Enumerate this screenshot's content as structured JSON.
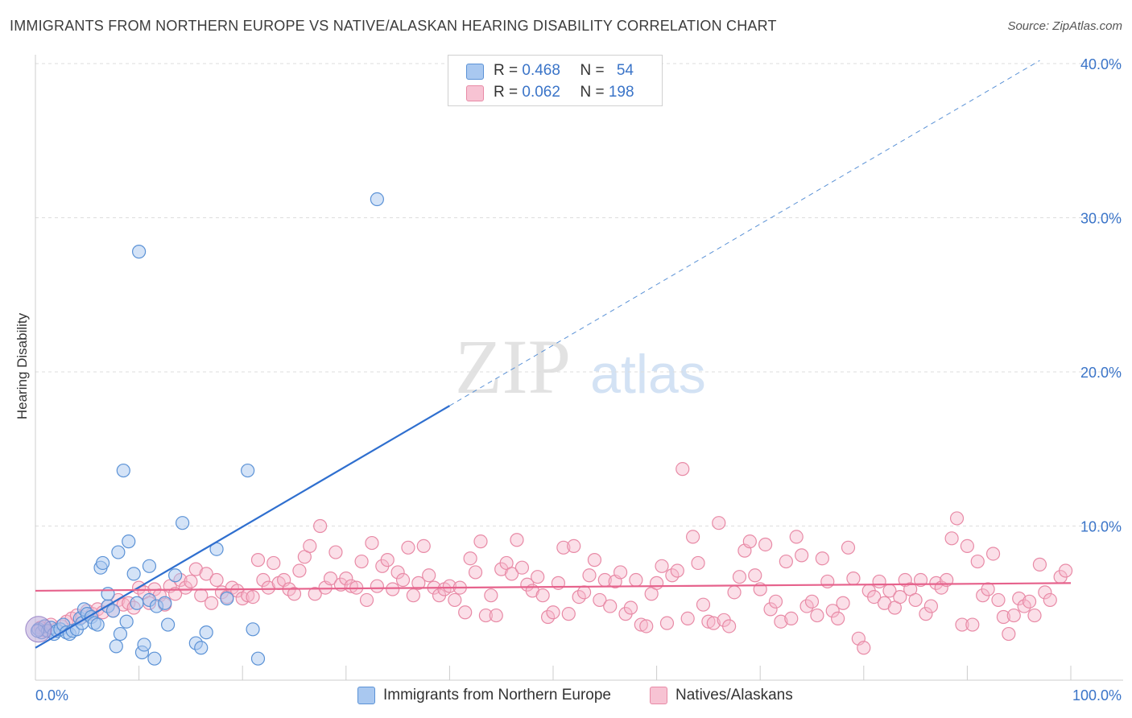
{
  "title": "IMMIGRANTS FROM NORTHERN EUROPE VS NATIVE/ALASKAN HEARING DISABILITY CORRELATION CHART",
  "source": "Source: ZipAtlas.com",
  "watermark": {
    "zip": "ZIP",
    "atlas": "atlas"
  },
  "legend": {
    "series1": {
      "r_label": "R = ",
      "r_value": "0.468",
      "n_label": "N = ",
      "n_value": "54"
    },
    "series2": {
      "r_label": "R = ",
      "r_value": "0.062",
      "n_label": "N = ",
      "n_value": "198"
    }
  },
  "colors": {
    "blue_fill": "#a9c8f0",
    "blue_stroke": "#5b92d6",
    "blue_line": "#2f6fcf",
    "pink_fill": "#f7b8cb",
    "pink_stroke": "#e88aa6",
    "pink_line": "#e6628c",
    "tick_label": "#3a74c8"
  },
  "chart_data": {
    "type": "scatter",
    "title": "IMMIGRANTS FROM NORTHERN EUROPE VS NATIVE/ALASKAN HEARING DISABILITY CORRELATION CHART",
    "xlabel": "",
    "ylabel": "Hearing Disability",
    "xlim": [
      0,
      100
    ],
    "ylim": [
      0,
      42
    ],
    "x_tick_labels": [
      {
        "value": 0,
        "label": "0.0%"
      },
      {
        "value": 100,
        "label": "100.0%"
      }
    ],
    "y_tick_labels": [
      {
        "value": 10,
        "label": "10.0%"
      },
      {
        "value": 20,
        "label": "20.0%"
      },
      {
        "value": 30,
        "label": "30.0%"
      },
      {
        "value": 40,
        "label": "40.0%"
      }
    ],
    "grid": true,
    "legend_position": "top-center",
    "series": [
      {
        "name": "Immigrants from Northern Europe",
        "color": "#5b92d6",
        "r": 0.468,
        "n": 54,
        "trend": {
          "x": [
            0,
            40
          ],
          "y": [
            2.1,
            17.8
          ],
          "extended_to": [
            97,
            40.2
          ]
        },
        "points": [
          [
            0.3,
            3.3
          ],
          [
            0.6,
            3.1
          ],
          [
            0.9,
            3.5
          ],
          [
            1.2,
            3.2
          ],
          [
            1.5,
            3.4
          ],
          [
            1.8,
            3.0
          ],
          [
            2.1,
            3.2
          ],
          [
            2.4,
            3.3
          ],
          [
            2.7,
            3.6
          ],
          [
            3.0,
            3.1
          ],
          [
            3.3,
            3.0
          ],
          [
            3.6,
            3.2
          ],
          [
            4.0,
            3.3
          ],
          [
            4.3,
            4.0
          ],
          [
            4.5,
            3.7
          ],
          [
            4.7,
            4.6
          ],
          [
            5.0,
            4.3
          ],
          [
            5.4,
            4.1
          ],
          [
            5.7,
            3.7
          ],
          [
            6.0,
            3.6
          ],
          [
            6.3,
            7.3
          ],
          [
            6.5,
            7.6
          ],
          [
            7.0,
            4.8
          ],
          [
            7.0,
            5.6
          ],
          [
            7.5,
            4.5
          ],
          [
            7.8,
            2.2
          ],
          [
            8.0,
            8.3
          ],
          [
            8.2,
            3.0
          ],
          [
            8.5,
            13.6
          ],
          [
            8.8,
            3.8
          ],
          [
            9.0,
            9.0
          ],
          [
            9.5,
            6.9
          ],
          [
            9.8,
            5.0
          ],
          [
            10.0,
            27.8
          ],
          [
            10.3,
            1.8
          ],
          [
            10.5,
            2.3
          ],
          [
            11.0,
            5.2
          ],
          [
            11.0,
            7.4
          ],
          [
            11.5,
            1.4
          ],
          [
            11.7,
            4.8
          ],
          [
            12.5,
            5.0
          ],
          [
            12.8,
            3.6
          ],
          [
            13.5,
            6.8
          ],
          [
            14.2,
            10.2
          ],
          [
            15.5,
            2.4
          ],
          [
            16.0,
            2.1
          ],
          [
            16.5,
            3.1
          ],
          [
            17.5,
            8.5
          ],
          [
            18.5,
            5.3
          ],
          [
            20.5,
            13.6
          ],
          [
            21.0,
            3.3
          ],
          [
            21.5,
            1.4
          ],
          [
            33.0,
            31.2
          ],
          [
            0.2,
            3.2
          ]
        ]
      },
      {
        "name": "Natives/Alaskans",
        "color": "#e88aa6",
        "r": 0.062,
        "n": 198,
        "trend": {
          "x": [
            0,
            100
          ],
          "y": [
            5.8,
            6.3
          ]
        },
        "points": [
          [
            0.5,
            3.4
          ],
          [
            1.0,
            3.2
          ],
          [
            1.5,
            3.6
          ],
          [
            2.0,
            3.3
          ],
          [
            2.5,
            3.5
          ],
          [
            3.0,
            3.8
          ],
          [
            3.5,
            4.0
          ],
          [
            4.0,
            4.2
          ],
          [
            4.5,
            4.1
          ],
          [
            5.0,
            4.5
          ],
          [
            5.5,
            4.3
          ],
          [
            6.0,
            4.6
          ],
          [
            6.5,
            4.4
          ],
          [
            7.0,
            4.8
          ],
          [
            7.5,
            4.5
          ],
          [
            8.0,
            5.2
          ],
          [
            8.5,
            4.9
          ],
          [
            9.0,
            5.0
          ],
          [
            9.5,
            4.7
          ],
          [
            10.0,
            6.0
          ],
          [
            10.5,
            5.7
          ],
          [
            11.0,
            5.0
          ],
          [
            11.5,
            5.9
          ],
          [
            12.0,
            5.5
          ],
          [
            12.5,
            4.9
          ],
          [
            13.0,
            6.1
          ],
          [
            13.5,
            5.6
          ],
          [
            14.0,
            6.5
          ],
          [
            14.5,
            6.0
          ],
          [
            15.0,
            6.4
          ],
          [
            15.5,
            7.2
          ],
          [
            16.0,
            5.5
          ],
          [
            16.5,
            6.9
          ],
          [
            17.0,
            5.0
          ],
          [
            17.5,
            6.5
          ],
          [
            18.0,
            5.7
          ],
          [
            18.5,
            5.4
          ],
          [
            19.0,
            6.0
          ],
          [
            19.5,
            5.8
          ],
          [
            20.0,
            5.3
          ],
          [
            20.5,
            5.5
          ],
          [
            21.0,
            5.4
          ],
          [
            21.5,
            7.8
          ],
          [
            22.0,
            6.5
          ],
          [
            22.5,
            6.0
          ],
          [
            23.0,
            7.6
          ],
          [
            23.5,
            6.3
          ],
          [
            24.0,
            6.5
          ],
          [
            24.5,
            5.9
          ],
          [
            25.0,
            5.6
          ],
          [
            25.5,
            7.1
          ],
          [
            26.0,
            8.0
          ],
          [
            26.5,
            8.7
          ],
          [
            27.0,
            5.6
          ],
          [
            27.5,
            10.0
          ],
          [
            28.0,
            6.0
          ],
          [
            28.5,
            6.6
          ],
          [
            29.0,
            8.3
          ],
          [
            29.5,
            6.2
          ],
          [
            30.0,
            6.6
          ],
          [
            30.5,
            6.1
          ],
          [
            31.0,
            6.0
          ],
          [
            31.5,
            7.7
          ],
          [
            32.0,
            5.2
          ],
          [
            32.5,
            8.9
          ],
          [
            33.0,
            6.1
          ],
          [
            33.5,
            7.4
          ],
          [
            34.0,
            7.8
          ],
          [
            34.5,
            5.9
          ],
          [
            35.0,
            7.0
          ],
          [
            35.5,
            6.5
          ],
          [
            36.0,
            8.6
          ],
          [
            36.5,
            5.5
          ],
          [
            37.0,
            6.3
          ],
          [
            37.5,
            8.7
          ],
          [
            38.0,
            6.8
          ],
          [
            38.5,
            6.0
          ],
          [
            39.0,
            5.5
          ],
          [
            39.5,
            5.9
          ],
          [
            40.0,
            6.1
          ],
          [
            40.5,
            5.2
          ],
          [
            41.0,
            6.0
          ],
          [
            41.5,
            4.4
          ],
          [
            42.0,
            7.9
          ],
          [
            42.5,
            7.0
          ],
          [
            43.0,
            9.0
          ],
          [
            43.5,
            4.2
          ],
          [
            44.0,
            5.5
          ],
          [
            44.5,
            4.2
          ],
          [
            45.0,
            7.2
          ],
          [
            45.5,
            7.6
          ],
          [
            46.0,
            6.9
          ],
          [
            46.5,
            9.1
          ],
          [
            47.0,
            7.3
          ],
          [
            47.5,
            6.2
          ],
          [
            48.0,
            5.8
          ],
          [
            48.5,
            6.7
          ],
          [
            49.0,
            5.5
          ],
          [
            49.5,
            4.1
          ],
          [
            50.0,
            4.4
          ],
          [
            50.5,
            6.3
          ],
          [
            51.0,
            8.6
          ],
          [
            51.5,
            4.3
          ],
          [
            52.0,
            8.7
          ],
          [
            52.5,
            5.4
          ],
          [
            53.0,
            5.7
          ],
          [
            53.5,
            6.8
          ],
          [
            54.0,
            7.8
          ],
          [
            54.5,
            5.2
          ],
          [
            55.0,
            6.5
          ],
          [
            55.5,
            4.8
          ],
          [
            56.0,
            6.4
          ],
          [
            56.5,
            7.0
          ],
          [
            57.0,
            4.3
          ],
          [
            57.5,
            4.7
          ],
          [
            58.0,
            6.5
          ],
          [
            58.5,
            3.6
          ],
          [
            59.0,
            3.5
          ],
          [
            59.5,
            5.6
          ],
          [
            60.0,
            6.3
          ],
          [
            60.5,
            7.4
          ],
          [
            61.0,
            3.7
          ],
          [
            61.5,
            6.8
          ],
          [
            62.0,
            7.1
          ],
          [
            62.5,
            13.7
          ],
          [
            63.0,
            4.0
          ],
          [
            63.5,
            9.3
          ],
          [
            64.0,
            7.6
          ],
          [
            64.5,
            4.9
          ],
          [
            65.0,
            3.8
          ],
          [
            65.5,
            3.7
          ],
          [
            66.0,
            10.2
          ],
          [
            66.5,
            3.9
          ],
          [
            67.0,
            3.5
          ],
          [
            67.5,
            5.7
          ],
          [
            68.0,
            6.7
          ],
          [
            68.5,
            8.4
          ],
          [
            69.0,
            9.0
          ],
          [
            69.5,
            6.8
          ],
          [
            70.0,
            5.9
          ],
          [
            70.5,
            8.8
          ],
          [
            71.0,
            4.6
          ],
          [
            71.5,
            5.1
          ],
          [
            72.0,
            3.8
          ],
          [
            72.5,
            7.7
          ],
          [
            73.0,
            4.0
          ],
          [
            73.5,
            9.3
          ],
          [
            74.0,
            8.1
          ],
          [
            74.5,
            4.8
          ],
          [
            75.0,
            5.1
          ],
          [
            75.5,
            4.2
          ],
          [
            76.0,
            7.9
          ],
          [
            76.5,
            6.4
          ],
          [
            77.0,
            4.5
          ],
          [
            77.5,
            4.0
          ],
          [
            78.0,
            5.0
          ],
          [
            78.5,
            8.6
          ],
          [
            79.0,
            6.6
          ],
          [
            79.5,
            2.7
          ],
          [
            80.0,
            2.1
          ],
          [
            80.5,
            5.8
          ],
          [
            81.0,
            5.4
          ],
          [
            81.5,
            6.4
          ],
          [
            82.0,
            5.0
          ],
          [
            82.5,
            5.8
          ],
          [
            83.0,
            4.7
          ],
          [
            83.5,
            5.4
          ],
          [
            84.0,
            6.5
          ],
          [
            84.5,
            5.9
          ],
          [
            85.0,
            5.2
          ],
          [
            85.5,
            6.5
          ],
          [
            86.0,
            4.3
          ],
          [
            86.5,
            4.8
          ],
          [
            87.0,
            6.3
          ],
          [
            87.5,
            6.0
          ],
          [
            88.0,
            6.5
          ],
          [
            88.5,
            9.2
          ],
          [
            89.0,
            10.5
          ],
          [
            89.5,
            3.6
          ],
          [
            90.0,
            8.7
          ],
          [
            90.5,
            3.6
          ],
          [
            91.0,
            7.7
          ],
          [
            91.5,
            5.5
          ],
          [
            92.0,
            5.9
          ],
          [
            92.5,
            8.2
          ],
          [
            93.0,
            5.2
          ],
          [
            93.5,
            4.1
          ],
          [
            94.0,
            3.0
          ],
          [
            94.5,
            4.2
          ],
          [
            95.0,
            5.3
          ],
          [
            95.5,
            4.8
          ],
          [
            96.0,
            5.1
          ],
          [
            96.5,
            4.2
          ],
          [
            97.0,
            7.5
          ],
          [
            97.5,
            5.7
          ],
          [
            98.0,
            5.2
          ],
          [
            99.0,
            6.7
          ],
          [
            99.5,
            7.1
          ]
        ]
      }
    ]
  },
  "bottom_legend": {
    "item1": "Immigrants from Northern Europe",
    "item2": "Natives/Alaskans"
  }
}
